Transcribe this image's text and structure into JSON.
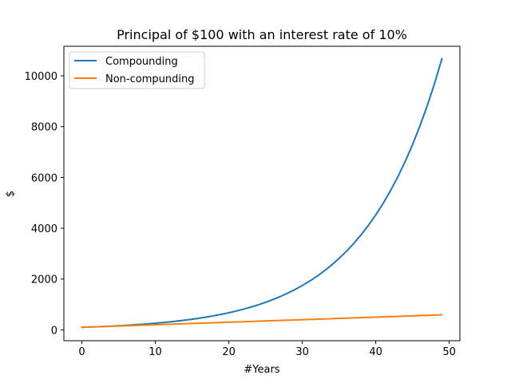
{
  "chart_data": {
    "type": "line",
    "title": "Principal of $100 with an interest rate of 10%",
    "xlabel": "#Years",
    "ylabel": "$",
    "xlim": [
      -2.45,
      51.45
    ],
    "ylim": [
      -428,
      11164
    ],
    "xticks": [
      0,
      10,
      20,
      30,
      40,
      50
    ],
    "yticks": [
      0,
      2000,
      4000,
      6000,
      8000,
      10000
    ],
    "grid": false,
    "legend_position": "upper-left",
    "principal": 100,
    "rate": 0.1,
    "x": [
      0,
      1,
      2,
      3,
      4,
      5,
      6,
      7,
      8,
      9,
      10,
      11,
      12,
      13,
      14,
      15,
      16,
      17,
      18,
      19,
      20,
      21,
      22,
      23,
      24,
      25,
      26,
      27,
      28,
      29,
      30,
      31,
      32,
      33,
      34,
      35,
      36,
      37,
      38,
      39,
      40,
      41,
      42,
      43,
      44,
      45,
      46,
      47,
      48,
      49
    ],
    "series": [
      {
        "name": "Compounding",
        "color": "#1f77b4",
        "values": [
          100.0,
          110.0,
          121.0,
          133.1,
          146.41,
          161.05,
          177.16,
          194.87,
          214.36,
          235.79,
          259.37,
          285.31,
          313.84,
          345.23,
          379.75,
          417.72,
          459.5,
          505.45,
          555.99,
          611.59,
          672.75,
          740.02,
          814.03,
          895.43,
          984.97,
          1083.47,
          1191.82,
          1311.0,
          1442.1,
          1586.31,
          1744.94,
          1919.43,
          2111.38,
          2322.52,
          2554.77,
          2810.24,
          3091.27,
          3400.39,
          3740.43,
          4114.48,
          4525.93,
          4978.52,
          5476.37,
          6024.01,
          6626.41,
          7289.05,
          8017.95,
          8819.75,
          9701.72,
          10671.89
        ]
      },
      {
        "name": "Non-compunding",
        "color": "#ff7f0e",
        "values": [
          100,
          110,
          120,
          130,
          140,
          150,
          160,
          170,
          180,
          190,
          200,
          210,
          220,
          230,
          240,
          250,
          260,
          270,
          280,
          290,
          300,
          310,
          320,
          330,
          340,
          350,
          360,
          370,
          380,
          390,
          400,
          410,
          420,
          430,
          440,
          450,
          460,
          470,
          480,
          490,
          500,
          510,
          520,
          530,
          540,
          550,
          560,
          570,
          580,
          590
        ]
      }
    ]
  }
}
